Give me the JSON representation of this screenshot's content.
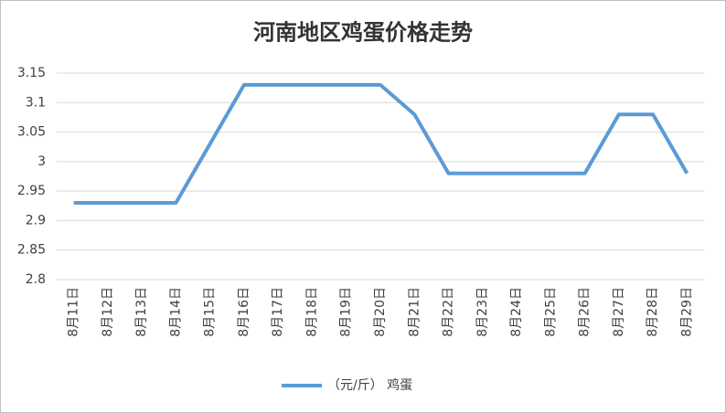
{
  "chart_data": {
    "type": "line",
    "title": "河南地区鸡蛋价格走势",
    "categories": [
      "8月11日",
      "8月12日",
      "8月13日",
      "8月14日",
      "8月15日",
      "8月16日",
      "8月17日",
      "8月18日",
      "8月19日",
      "8月20日",
      "8月21日",
      "8月22日",
      "8月23日",
      "8月24日",
      "8月25日",
      "8月26日",
      "8月27日",
      "8月28日",
      "8月29日"
    ],
    "series": [
      {
        "name": "（元/斤） 鸡蛋",
        "color": "#5b9bd5",
        "values": [
          2.93,
          2.93,
          2.93,
          2.93,
          3.03,
          3.13,
          3.13,
          3.13,
          3.13,
          3.13,
          3.08,
          2.98,
          2.98,
          2.98,
          2.98,
          2.98,
          3.08,
          3.08,
          2.98
        ]
      }
    ],
    "ylim": [
      2.8,
      3.15
    ],
    "yticks": [
      2.8,
      2.85,
      2.9,
      2.95,
      3,
      3.05,
      3.1,
      3.15
    ],
    "grid": true,
    "legend": "bottom"
  }
}
